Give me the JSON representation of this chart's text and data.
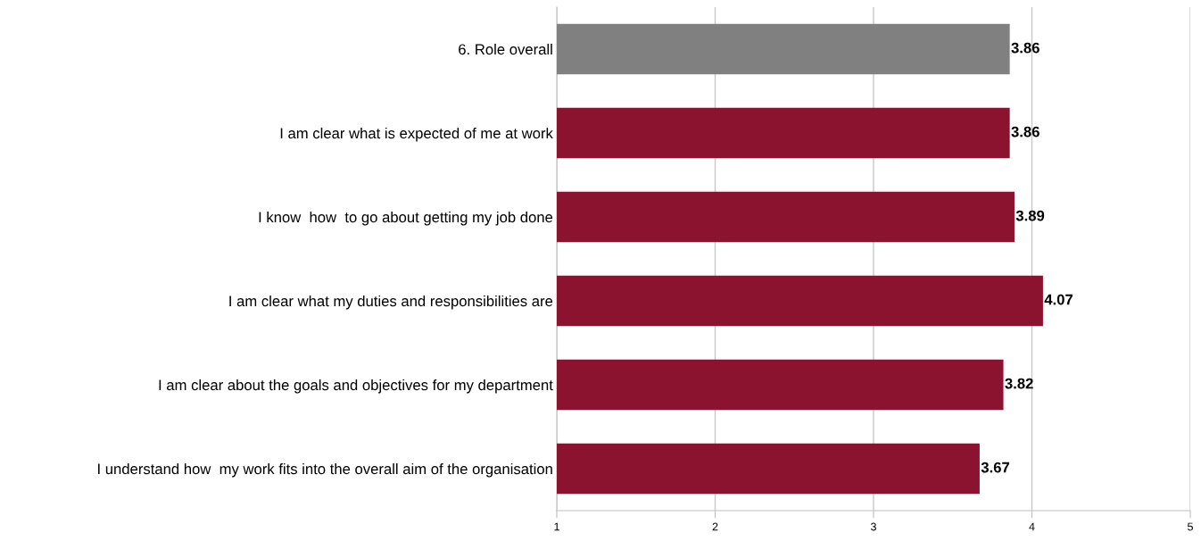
{
  "chart_data": {
    "type": "bar",
    "orientation": "horizontal",
    "categories": [
      "6. Role overall",
      "I am clear what is expected of me at work",
      "I know  how  to go about getting my job done",
      "I am clear what my duties and responsibilities are",
      "I am clear about the goals and objectives for my department",
      "I understand how  my work fits into the overall aim of the organisation"
    ],
    "values": [
      3.86,
      3.86,
      3.89,
      4.07,
      3.82,
      3.67
    ],
    "colors": [
      "#808080",
      "#8c1330",
      "#8c1330",
      "#8c1330",
      "#8c1330",
      "#8c1330"
    ],
    "xlim": [
      1,
      5
    ],
    "xticks": [
      1,
      2,
      3,
      4,
      5
    ],
    "grid": "x",
    "data_labels": true,
    "legend": false
  }
}
